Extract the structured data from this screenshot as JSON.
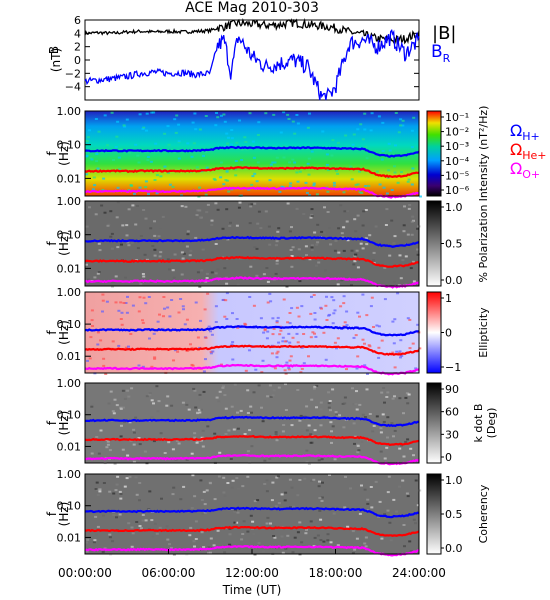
{
  "title": "ACE Mag 2010-303",
  "x_label": "Time (UT)",
  "x_ticks": [
    "00:00:00",
    "06:00:00",
    "12:00:00",
    "18:00:00",
    "24:00:00"
  ],
  "colors": {
    "B_mag": "#000000",
    "B_R": "#0000ff",
    "omega_H": "#0000ff",
    "omega_He": "#ff0000",
    "omega_O": "#ff00ff"
  },
  "panels": [
    {
      "id": "b-field",
      "ylabel_top": "B",
      "ylabel_bottom": "(nT)"
    },
    {
      "id": "intensity",
      "ylabel_top": "f",
      "ylabel_bottom": "(Hz)",
      "bar_label": "Intensity (nT²/Hz)",
      "bar_ticks": [
        "10⁻¹",
        "10⁻²",
        "10⁻³",
        "10⁻⁴",
        "10⁻⁵",
        "10⁻⁶"
      ]
    },
    {
      "id": "polarization",
      "ylabel_top": "f",
      "ylabel_bottom": "(Hz)",
      "bar_label": "% Polarization",
      "bar_ticks": [
        "1.0",
        "0.5",
        "0.0"
      ]
    },
    {
      "id": "ellipticity",
      "ylabel_top": "f",
      "ylabel_bottom": "(Hz)",
      "bar_label": "Ellipticity",
      "bar_ticks": [
        "1",
        "0",
        "−1"
      ]
    },
    {
      "id": "kdotb",
      "ylabel_top": "f",
      "ylabel_bottom": "(Hz)",
      "bar_label_top": "k dot B",
      "bar_label_bottom": "(Deg)",
      "bar_ticks": [
        "90",
        "60",
        "30",
        "0"
      ]
    },
    {
      "id": "coherency",
      "ylabel_top": "f",
      "ylabel_bottom": "(Hz)",
      "bar_label": "Coherency",
      "bar_ticks": [
        "1.0",
        "0.5",
        "0.0"
      ]
    }
  ],
  "freq_ticks": [
    "1.00",
    "0.10",
    "0.01"
  ],
  "legend": {
    "B_mag": "|B|",
    "B_R_main": "B",
    "B_R_sub": "R",
    "omega_main": "Ω",
    "omega_H_sub": "H+",
    "omega_He_sub": "He+",
    "omega_O_sub": "O+"
  },
  "chart_data": [
    {
      "type": "line",
      "title": "ACE Mag 2010-303",
      "xlabel": "Time (UT)",
      "ylabel": "B (nT)",
      "ylim": [
        -6,
        6
      ],
      "y_ticks": [
        6,
        4,
        2,
        0,
        -2,
        -4
      ],
      "x_hours": [
        0,
        1,
        2,
        3,
        4,
        5,
        6,
        7,
        8,
        9,
        9.5,
        10,
        10.5,
        11,
        12,
        13,
        14,
        15,
        16,
        17,
        17.5,
        18,
        19,
        20,
        21,
        22,
        23,
        24
      ],
      "series": [
        {
          "name": "|B|",
          "values": [
            4.0,
            4.1,
            4.0,
            4.2,
            4.3,
            4.2,
            4.3,
            4.2,
            4.3,
            4.4,
            4.8,
            5.0,
            5.3,
            5.5,
            5.4,
            5.2,
            5.3,
            5.6,
            5.3,
            5.1,
            5.0,
            4.8,
            4.2,
            3.8,
            3.2,
            3.0,
            3.2,
            4.0
          ]
        },
        {
          "name": "B_R",
          "values": [
            -3.2,
            -3.0,
            -2.8,
            -2.5,
            -2.0,
            -1.8,
            -2.0,
            -1.9,
            -2.2,
            -2.0,
            2.0,
            3.0,
            -2.0,
            3.5,
            0.5,
            -1.0,
            -0.5,
            0.0,
            -1.0,
            -5.5,
            -5.5,
            -4.0,
            2.5,
            3.0,
            2.0,
            3.5,
            1.0,
            3.0
          ]
        }
      ]
    },
    {
      "type": "heatmap",
      "xlabel": "Time (UT)",
      "ylabel": "f (Hz)",
      "ylim": [
        0.003,
        1.0
      ],
      "y_scale": "log",
      "series": [
        {
          "name": "H+",
          "values": [
            0.065,
            0.066,
            0.067,
            0.065,
            0.066,
            0.067,
            0.066,
            0.066,
            0.067,
            0.07,
            0.078,
            0.08,
            0.082,
            0.083,
            0.082,
            0.08,
            0.079,
            0.08,
            0.081,
            0.08,
            0.079,
            0.078,
            0.076,
            0.075,
            0.05,
            0.045,
            0.048,
            0.06
          ]
        },
        {
          "name": "He+",
          "values": [
            0.0163,
            0.0165,
            0.0167,
            0.0163,
            0.0166,
            0.0167,
            0.0165,
            0.0166,
            0.0167,
            0.0175,
            0.0195,
            0.02,
            0.0205,
            0.0208,
            0.0205,
            0.02,
            0.0198,
            0.02,
            0.0203,
            0.02,
            0.0198,
            0.0195,
            0.019,
            0.0188,
            0.0125,
            0.0113,
            0.012,
            0.015
          ]
        },
        {
          "name": "O+",
          "values": [
            0.0041,
            0.0041,
            0.0042,
            0.0041,
            0.0042,
            0.0042,
            0.0041,
            0.0042,
            0.0042,
            0.0044,
            0.0049,
            0.005,
            0.0051,
            0.0052,
            0.0051,
            0.005,
            0.005,
            0.005,
            0.0051,
            0.005,
            0.005,
            0.0049,
            0.0048,
            0.0047,
            0.0031,
            0.0028,
            0.003,
            0.0038
          ]
        }
      ]
    }
  ]
}
